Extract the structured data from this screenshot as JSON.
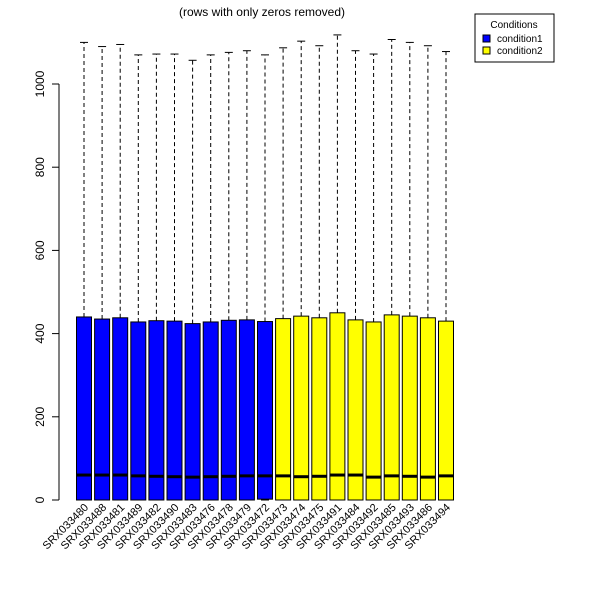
{
  "chart_data": {
    "type": "boxplot",
    "title": "(rows with only zeros removed)",
    "xlabel": "",
    "ylabel": "",
    "ylim": [
      0,
      1130
    ],
    "y_ticks": [
      0,
      200,
      400,
      600,
      800,
      1000
    ],
    "y_tick_labels": [
      "0",
      "200",
      "400",
      "600",
      "800",
      "1000"
    ],
    "grid": false,
    "legend": {
      "title": "Conditions",
      "placement": "top-right",
      "items": [
        {
          "label": "condition1",
          "color": "#0000ff"
        },
        {
          "label": "condition2",
          "color": "#ffff00"
        }
      ]
    },
    "colors": {
      "condition1": "#0000ff",
      "condition2": "#ffff00"
    },
    "categories": [
      "SRX033480",
      "SRX033488",
      "SRX033481",
      "SRX033489",
      "SRX033482",
      "SRX033490",
      "SRX033483",
      "SRX033476",
      "SRX033478",
      "SRX033479",
      "SRX033472",
      "SRX033473",
      "SRX033474",
      "SRX033475",
      "SRX033491",
      "SRX033484",
      "SRX033492",
      "SRX033485",
      "SRX033493",
      "SRX033486",
      "SRX033494"
    ],
    "boxes": [
      {
        "sample": "SRX033480",
        "condition": "condition1",
        "min": 0,
        "q1": 0,
        "median": 60,
        "q3": 440,
        "whisker_high": 1100
      },
      {
        "sample": "SRX033488",
        "condition": "condition1",
        "min": 0,
        "q1": 0,
        "median": 60,
        "q3": 435,
        "whisker_high": 1090
      },
      {
        "sample": "SRX033481",
        "condition": "condition1",
        "min": 0,
        "q1": 0,
        "median": 60,
        "q3": 438,
        "whisker_high": 1095
      },
      {
        "sample": "SRX033489",
        "condition": "condition1",
        "min": 0,
        "q1": 0,
        "median": 58,
        "q3": 428,
        "whisker_high": 1070
      },
      {
        "sample": "SRX033482",
        "condition": "condition1",
        "min": 0,
        "q1": 0,
        "median": 57,
        "q3": 431,
        "whisker_high": 1072
      },
      {
        "sample": "SRX033490",
        "condition": "condition1",
        "min": 0,
        "q1": 0,
        "median": 56,
        "q3": 430,
        "whisker_high": 1072
      },
      {
        "sample": "SRX033483",
        "condition": "condition1",
        "min": 0,
        "q1": 0,
        "median": 55,
        "q3": 424,
        "whisker_high": 1057
      },
      {
        "sample": "SRX033476",
        "condition": "condition1",
        "min": 0,
        "q1": 0,
        "median": 56,
        "q3": 428,
        "whisker_high": 1070
      },
      {
        "sample": "SRX033478",
        "condition": "condition1",
        "min": 0,
        "q1": 0,
        "median": 57,
        "q3": 432,
        "whisker_high": 1076
      },
      {
        "sample": "SRX033479",
        "condition": "condition1",
        "min": 0,
        "q1": 0,
        "median": 58,
        "q3": 433,
        "whisker_high": 1080
      },
      {
        "sample": "SRX033472",
        "condition": "condition1",
        "min": 0,
        "q1": 2,
        "median": 58,
        "q3": 429,
        "whisker_high": 1070
      },
      {
        "sample": "SRX033473",
        "condition": "condition2",
        "min": 0,
        "q1": 0,
        "median": 58,
        "q3": 436,
        "whisker_high": 1087
      },
      {
        "sample": "SRX033474",
        "condition": "condition2",
        "min": 0,
        "q1": 0,
        "median": 56,
        "q3": 442,
        "whisker_high": 1103
      },
      {
        "sample": "SRX033475",
        "condition": "condition2",
        "min": 0,
        "q1": 0,
        "median": 57,
        "q3": 438,
        "whisker_high": 1092
      },
      {
        "sample": "SRX033491",
        "condition": "condition2",
        "min": 0,
        "q1": 0,
        "median": 60,
        "q3": 450,
        "whisker_high": 1118
      },
      {
        "sample": "SRX033484",
        "condition": "condition2",
        "min": 0,
        "q1": 0,
        "median": 60,
        "q3": 433,
        "whisker_high": 1080
      },
      {
        "sample": "SRX033492",
        "condition": "condition2",
        "min": 0,
        "q1": 0,
        "median": 55,
        "q3": 428,
        "whisker_high": 1072
      },
      {
        "sample": "SRX033485",
        "condition": "condition2",
        "min": 0,
        "q1": 0,
        "median": 58,
        "q3": 445,
        "whisker_high": 1107
      },
      {
        "sample": "SRX033493",
        "condition": "condition2",
        "min": 0,
        "q1": 0,
        "median": 57,
        "q3": 442,
        "whisker_high": 1100
      },
      {
        "sample": "SRX033486",
        "condition": "condition2",
        "min": 0,
        "q1": 0,
        "median": 55,
        "q3": 438,
        "whisker_high": 1092
      },
      {
        "sample": "SRX033494",
        "condition": "condition2",
        "min": 0,
        "q1": 0,
        "median": 58,
        "q3": 430,
        "whisker_high": 1078
      }
    ]
  }
}
